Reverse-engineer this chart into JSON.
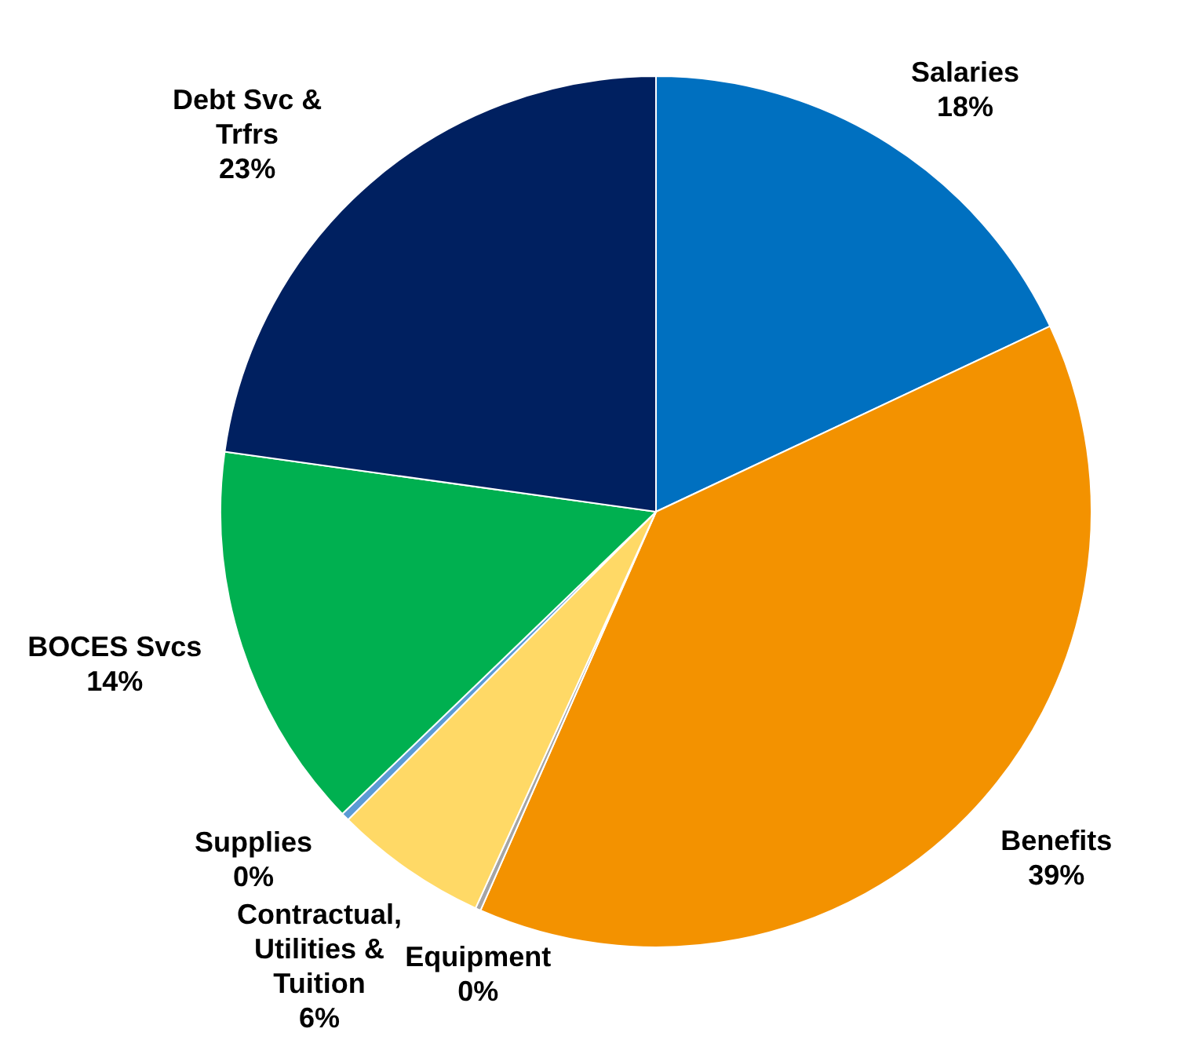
{
  "chart_data": {
    "type": "pie",
    "categories": [
      "Salaries",
      "Benefits",
      "Equipment",
      "Contractual, Utilities & Tuition",
      "Supplies",
      "BOCES Svcs",
      "Debt Svc & Trfrs"
    ],
    "values": [
      18,
      38.6,
      0.2,
      5.7,
      0.3,
      14.4,
      22.8
    ],
    "value_labels": [
      "18%",
      "39%",
      "0%",
      "6%",
      "0%",
      "14%",
      "23%"
    ],
    "colors": [
      "#0070c0",
      "#f39200",
      "#a5a5a5",
      "#ffd966",
      "#5b9bd5",
      "#00b050",
      "#002060"
    ],
    "legend": false
  }
}
